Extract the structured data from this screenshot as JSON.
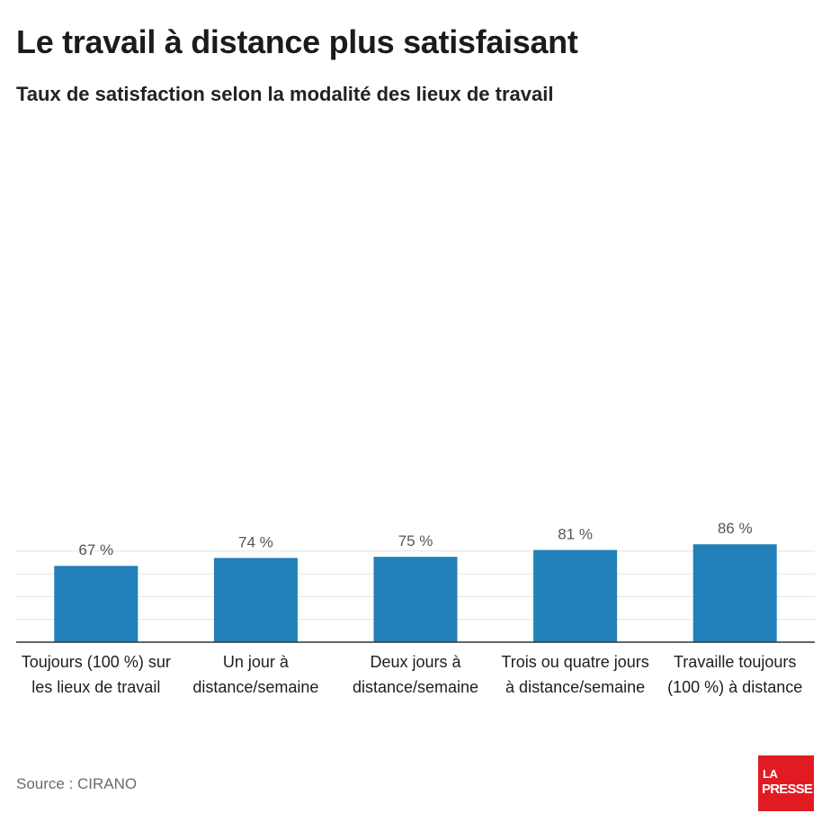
{
  "header": {
    "title": "Le travail à distance plus satisfaisant",
    "subtitle": "Taux de satisfaction selon la modalité des lieux de travail"
  },
  "chart_data": {
    "type": "bar",
    "title": "Le travail à distance plus satisfaisant",
    "subtitle": "Taux de satisfaction selon la modalité des lieux de travail",
    "categories": [
      "Toujours (100 %) sur les lieux de travail",
      "Un jour à distance/semaine",
      "Deux jours à distance/semaine",
      "Trois ou quatre jours à distance/semaine",
      "Travaille toujours (100 %) à distance"
    ],
    "values": [
      67,
      74,
      75,
      81,
      86
    ],
    "value_labels": [
      "67 %",
      "74 %",
      "75 %",
      "81 %",
      "86 %"
    ],
    "ylim": [
      0,
      90
    ],
    "grid": true,
    "bar_color": "#2280b8",
    "grid_color": "#e4e4e4",
    "axis_color": "#333333"
  },
  "footer": {
    "source": "Source : CIRANO",
    "logo_line1": "LA",
    "logo_line2": "PRESSE"
  }
}
